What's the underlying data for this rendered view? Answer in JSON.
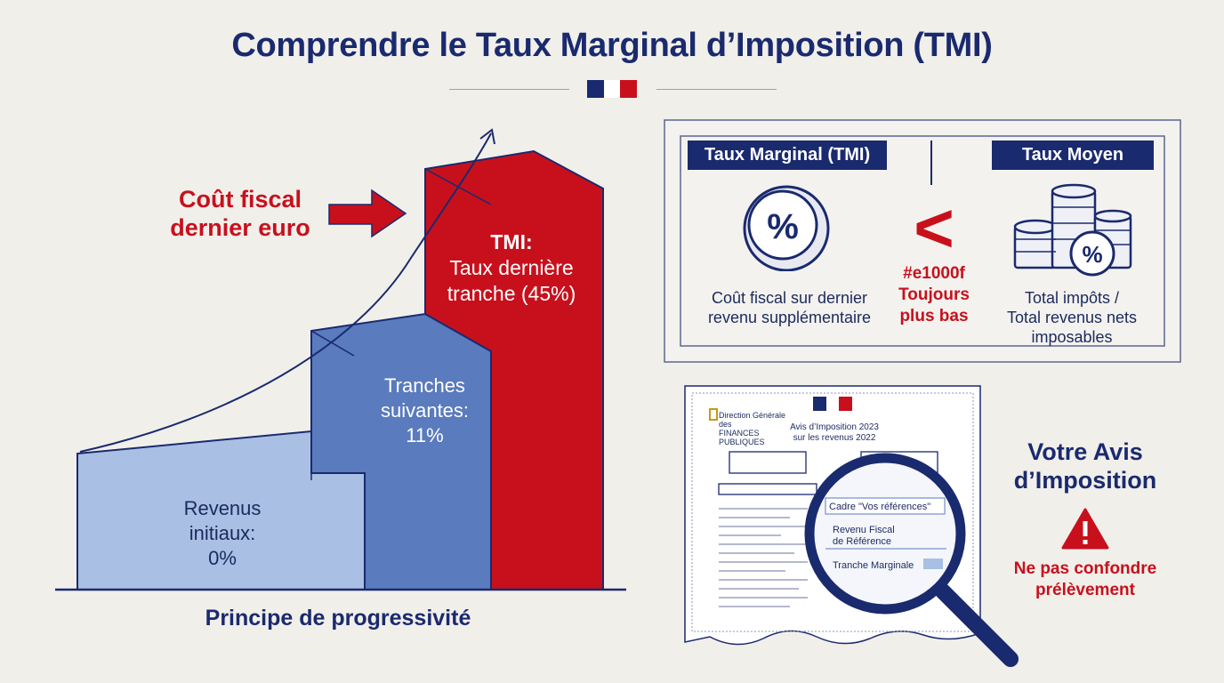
{
  "title": "Comprendre le Taux Marginal d’Imposition (TMI)",
  "colors": {
    "navy": "#1a2a6e",
    "red": "#c8101d",
    "mid_blue": "#5a7bbd",
    "light_blue": "#a9bfe3",
    "background": "#f1efea"
  },
  "progressivity": {
    "callout_line1": "Coût fiscal",
    "callout_line2": "dernier euro",
    "tranche1": {
      "line1": "Revenus",
      "line2": "initiaux:",
      "line3": "0%"
    },
    "tranche2": {
      "line1": "Tranches",
      "line2": "suivantes:",
      "line3": "11%"
    },
    "tranche3": {
      "line1": "TMI:",
      "line2": "Taux dernière",
      "line3": "tranche (45%)"
    },
    "caption": "Principe de progressivité"
  },
  "comparison": {
    "left_title": "Taux Marginal (TMI)",
    "left_icon": "percent-circle-icon",
    "left_desc_line1": "Coût fiscal sur dernier",
    "left_desc_line2": "revenu supplémentaire",
    "operator": "<",
    "operator_label_line1": "#e1000f",
    "operator_label_line2": "Toujours",
    "operator_label_line3": "plus bas",
    "right_title": "Taux Moyen",
    "right_icon": "coins-stack-icon",
    "right_desc_line1": "Total impôts /",
    "right_desc_line2": "Total revenus nets",
    "right_desc_line3": "imposables"
  },
  "avis": {
    "doc_issuer_line1": "Direction Générale des",
    "doc_issuer_line2": "FINANCES PUBLIQUES",
    "doc_title_line1": "Avis d’Imposition 2023",
    "doc_title_line2": "sur les revenus 2022",
    "magnifier_header": "Cadre \"Vos références\"",
    "magnifier_line1": "Revenu Fiscal",
    "magnifier_line2": "de Référence",
    "magnifier_line3": "Tranche Marginale",
    "heading_line1": "Votre Avis",
    "heading_line2": "d’Imposition",
    "warning_icon": "warning-triangle-icon",
    "warning_line1": "Ne pas confondre",
    "warning_line2": "prélèvement"
  }
}
